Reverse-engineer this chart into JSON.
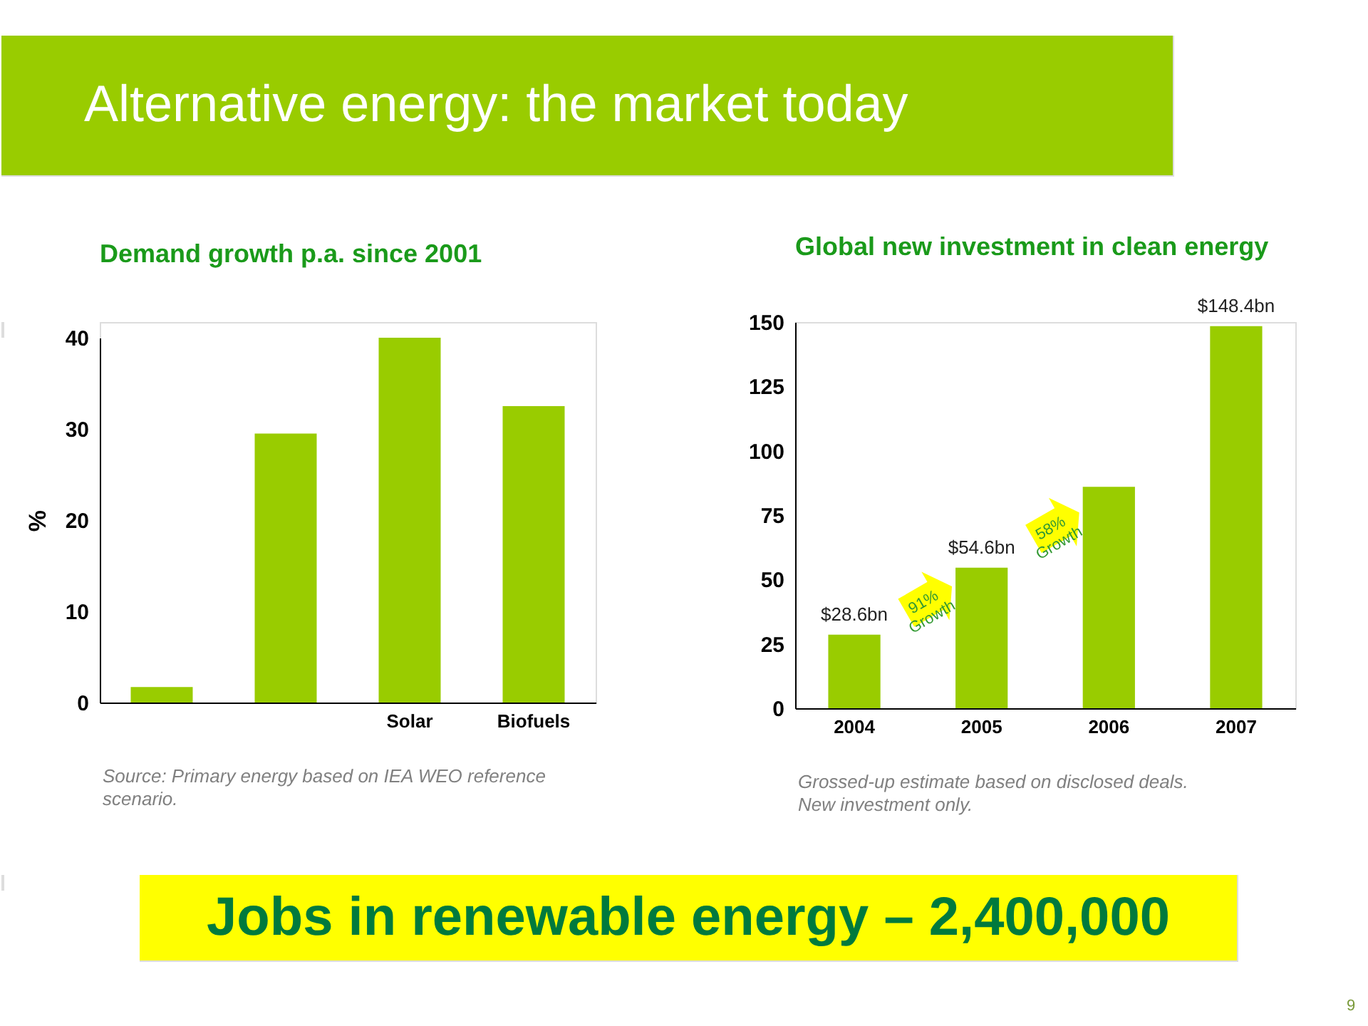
{
  "chart_data": [
    {
      "type": "other",
      "title": "Alternative energy: the market today",
      "annotations": [
        "Jobs in renewable energy – 2,400,000",
        "9"
      ]
    },
    {
      "type": "bar",
      "title": "Demand growth p.a. since 2001",
      "ylabel": "%",
      "categories": [
        null,
        null,
        "Solar",
        "Biofuels"
      ],
      "values": [
        1.7,
        29.5,
        40,
        32.5
      ],
      "color": "#99cc00",
      "ylim": [
        0,
        40
      ],
      "yticks": [
        0,
        10,
        20,
        30,
        40
      ],
      "annotations": [
        "Source: Primary energy based on IEA WEO reference scenario."
      ]
    },
    {
      "type": "bar",
      "title": "Global new investment in clean energy",
      "categories": [
        "2004",
        "2005",
        "2006",
        "2007"
      ],
      "values": [
        28.6,
        54.6,
        86,
        148.4
      ],
      "value_labels": [
        "$28.6bn",
        "$54.6bn",
        null,
        "$148.4bn"
      ],
      "color": "#99cc00",
      "ylim": [
        0,
        150
      ],
      "yticks": [
        0,
        25,
        50,
        75,
        100,
        125,
        150
      ],
      "annotations": [
        "91% Growth",
        "58% Growth",
        "Grossed-up estimate based on disclosed deals.",
        "New investment only."
      ]
    }
  ]
}
